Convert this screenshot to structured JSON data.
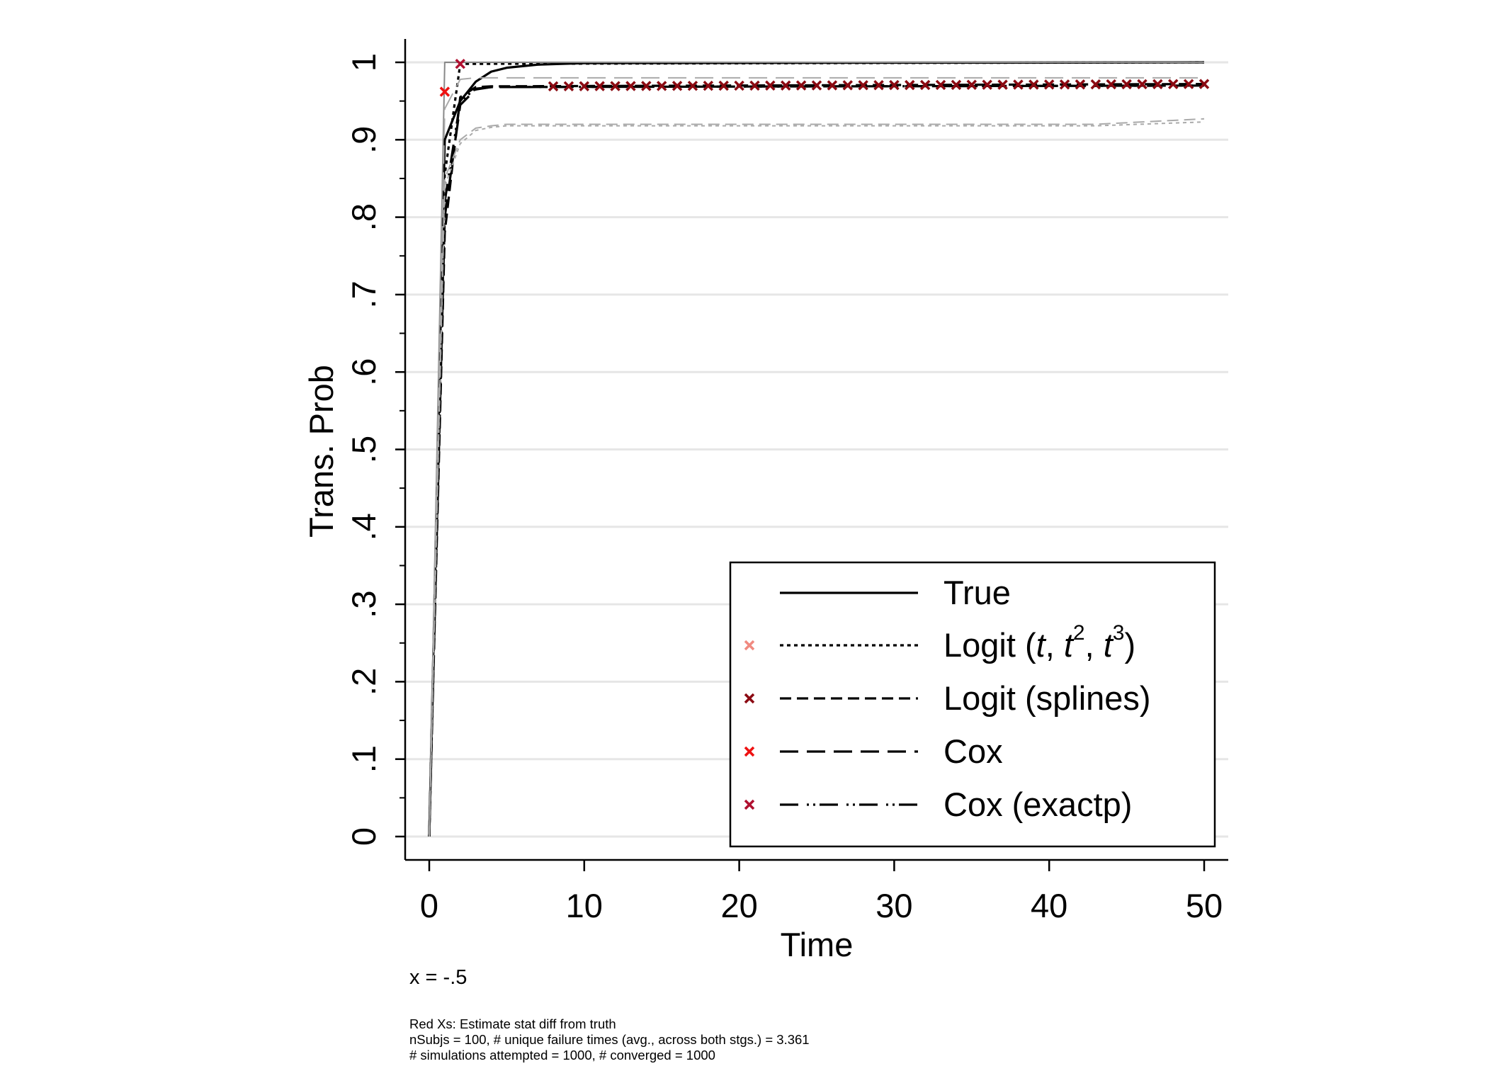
{
  "chart_data": {
    "type": "line",
    "xlabel": "Time",
    "ylabel": "Trans. Prob",
    "xlim": [
      0,
      50
    ],
    "ylim": [
      0,
      1
    ],
    "xticks": [
      "0",
      "10",
      "20",
      "30",
      "40",
      "50"
    ],
    "yticks": [
      "0",
      ".1",
      ".2",
      ".3",
      ".4",
      ".5",
      ".6",
      ".7",
      ".8",
      ".9",
      "1"
    ],
    "grid": "horizontal",
    "legend_position": "bottom-right",
    "legend": [
      {
        "label": "True",
        "style": "solid",
        "marker_color": ""
      },
      {
        "label_parts": [
          "Logit (",
          "t",
          ", ",
          "t",
          "2",
          ", ",
          "t",
          "3",
          ")"
        ],
        "style": "dotted",
        "marker_color": "#f08a80"
      },
      {
        "label": "Logit (splines)",
        "style": "dashed",
        "marker_color": "#8b0a12"
      },
      {
        "label": "Cox",
        "style": "longdash",
        "marker_color": "#ee1111"
      },
      {
        "label": "Cox (exactp)",
        "style": "longdash-dot",
        "marker_color": "#b01030"
      }
    ],
    "series": [
      {
        "name": "True",
        "style": "solid",
        "color": "#000000",
        "x": [
          0,
          1,
          2,
          3,
          4,
          5,
          7,
          10,
          50
        ],
        "y": [
          0,
          0.9,
          0.95,
          0.975,
          0.988,
          0.993,
          0.997,
          0.999,
          1.0
        ]
      },
      {
        "style": "dotted",
        "color": "#000000",
        "x": [
          0,
          1,
          2,
          50
        ],
        "y": [
          0,
          0.855,
          0.998,
          1.0
        ]
      },
      {
        "style": "dashed",
        "color": "#000000",
        "x": [
          0,
          1,
          2,
          3,
          4,
          50
        ],
        "y": [
          0,
          0.78,
          0.955,
          0.968,
          0.969,
          0.972
        ]
      },
      {
        "style": "longdash",
        "color": "#000000",
        "x": [
          0,
          1,
          2,
          3,
          4,
          50
        ],
        "y": [
          0,
          0.8,
          0.945,
          0.965,
          0.968,
          0.97
        ]
      },
      {
        "style": "longdash-dot",
        "color": "#000000",
        "x": [
          0,
          1,
          2,
          3,
          4,
          50
        ],
        "y": [
          0,
          0.82,
          0.95,
          0.966,
          0.968,
          0.97
        ]
      },
      {
        "style": "solid",
        "color": "#888888",
        "x": [
          0,
          1,
          50
        ],
        "y": [
          0,
          1.0,
          1.0
        ]
      },
      {
        "style": "longdash",
        "color": "#aaaaaa",
        "x": [
          0,
          1,
          2,
          3,
          50
        ],
        "y": [
          0,
          0.94,
          0.978,
          0.98,
          0.98
        ]
      },
      {
        "style": "dashed",
        "color": "#aaaaaa",
        "x": [
          0,
          1,
          2,
          3,
          4,
          5,
          43,
          50
        ],
        "y": [
          0,
          0.85,
          0.9,
          0.915,
          0.918,
          0.92,
          0.92,
          0.927
        ]
      },
      {
        "style": "dotted",
        "color": "#aaaaaa",
        "x": [
          0,
          1,
          2,
          3,
          4,
          5,
          43,
          50
        ],
        "y": [
          0,
          0.84,
          0.895,
          0.912,
          0.916,
          0.918,
          0.918,
          0.923
        ]
      }
    ],
    "markers": [
      {
        "x": 1,
        "y": 0.962,
        "color": "#ee1111"
      },
      {
        "x": 2,
        "y": 0.998,
        "color": "#b01030"
      },
      {
        "x_start": 8,
        "x_end": 50,
        "step": 1,
        "y_start": 0.969,
        "y_end": 0.972,
        "color": "#8b0a12"
      }
    ]
  },
  "subtitle": "x = -.5",
  "notes": [
    "Red Xs: Estimate stat diff from truth",
    "nSubjs = 100, # unique failure times (avg., across both stgs.) = 3.361",
    "# simulations attempted = 1000, # converged = 1000"
  ]
}
